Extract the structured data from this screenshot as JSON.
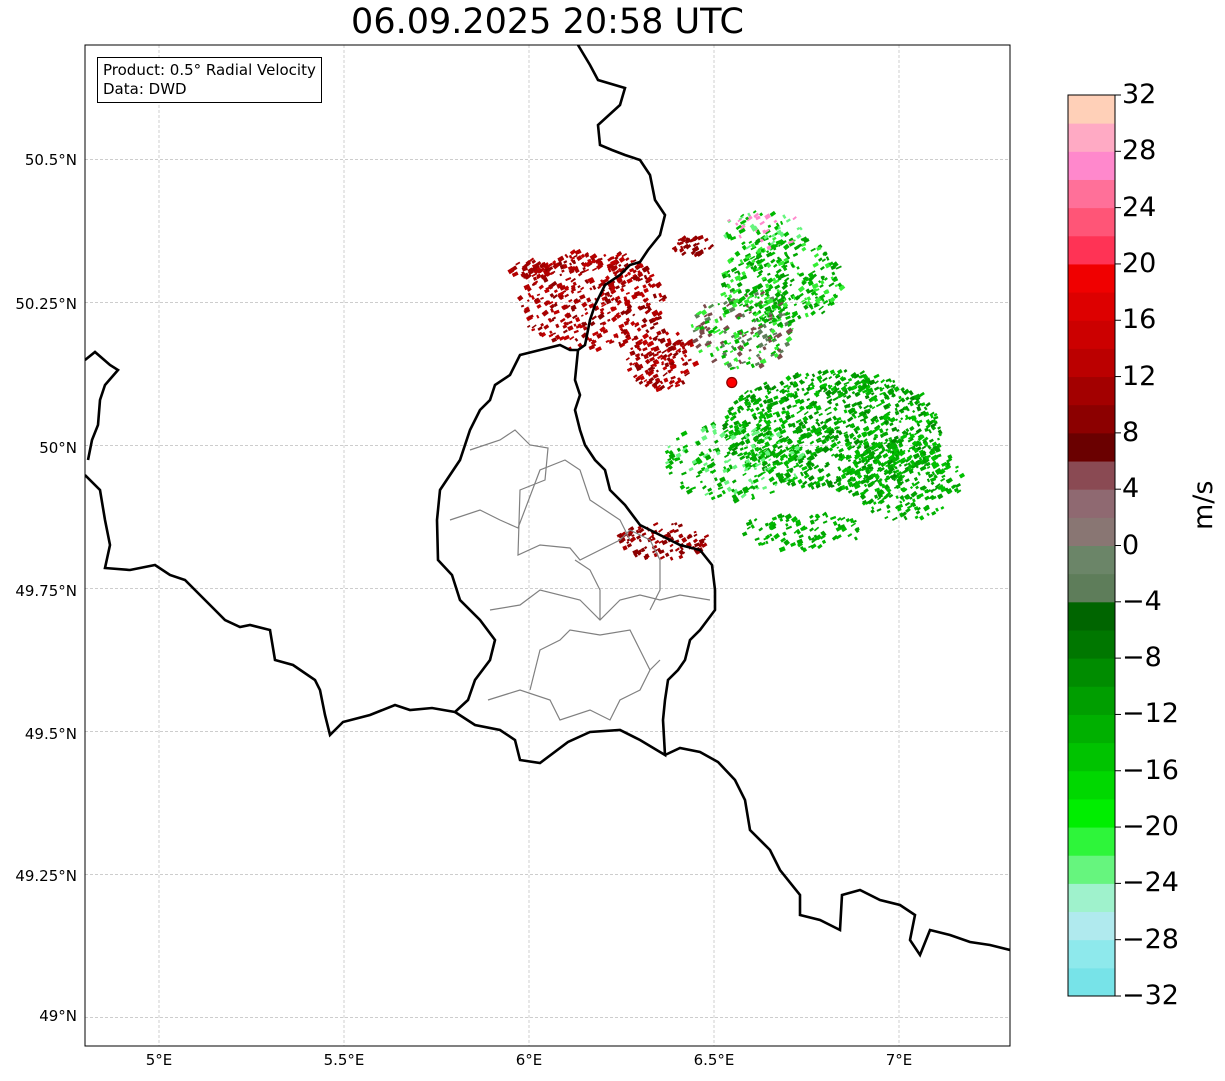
{
  "title": "06.09.2025 20:58 UTC",
  "info_box": {
    "product_line": "Product: 0.5° Radial Velocity",
    "data_line": "Data: DWD"
  },
  "axes": {
    "lat_ticks": [
      "50.5°N",
      "50.25°N",
      "50°N",
      "49.75°N",
      "49.5°N",
      "49.25°N",
      "49°N"
    ],
    "lon_ticks": [
      "5°E",
      "5.5°E",
      "6°E",
      "6.5°E",
      "7°E"
    ],
    "lon_range": [
      4.8,
      7.3
    ],
    "lat_range": [
      48.95,
      50.7
    ]
  },
  "radar_site": {
    "lon": 6.548,
    "lat": 50.11,
    "color": "#ff0000"
  },
  "colorbar": {
    "unit": "m/s",
    "min": -32,
    "max": 32,
    "tick_labels": [
      "32",
      "28",
      "24",
      "20",
      "16",
      "12",
      "8",
      "4",
      "0",
      "−4",
      "−8",
      "−12",
      "−16",
      "−20",
      "−24",
      "−28",
      "−32"
    ],
    "colors_bottom_to_top": [
      "#77e3e8",
      "#8ee9ec",
      "#b0eaee",
      "#9ff2cc",
      "#66f57e",
      "#2ef53a",
      "#00ee00",
      "#00d800",
      "#00c300",
      "#00b000",
      "#009e00",
      "#008c00",
      "#007700",
      "#006500",
      "#5e7d5a",
      "#6b8568",
      "#897673",
      "#8f6971",
      "#8a4a53",
      "#6a0000",
      "#8c0000",
      "#a30000",
      "#bb0000",
      "#cc0000",
      "#dd0000",
      "#f00000",
      "#ff3355",
      "#ff5577",
      "#ff7099",
      "#ff88cc",
      "#ffaac4",
      "#ffd0b8"
    ]
  }
}
